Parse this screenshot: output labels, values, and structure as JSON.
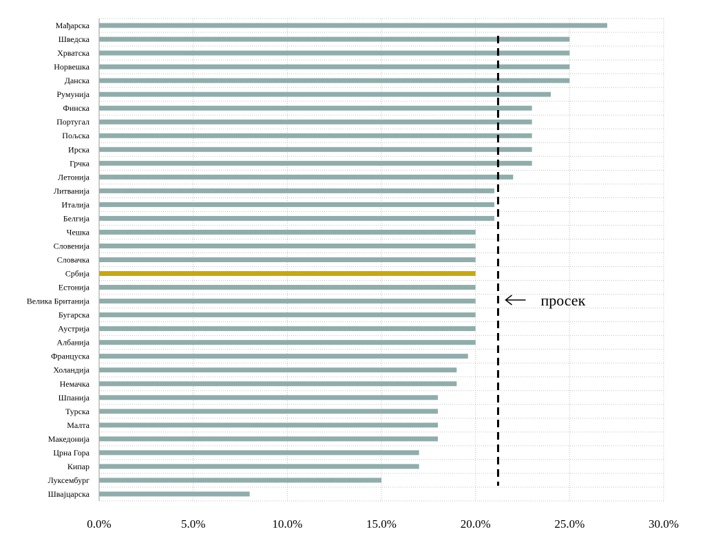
{
  "chart_data": {
    "type": "bar",
    "orientation": "horizontal",
    "categories": [
      "Мађарска",
      "Шведска",
      "Хрватска",
      "Норвешка",
      "Данска",
      "Румунија",
      "Финска",
      "Португал",
      "Пољска",
      "Ирска",
      "Грчка",
      "Летонија",
      "Литванија",
      "Италија",
      "Белгија",
      "Чешка",
      "Словенија",
      "Словачка",
      "Србија",
      "Естонија",
      "Велика Британија",
      "Бугарска",
      "Аустрија",
      "Албанија",
      "Француска",
      "Холандија",
      "Немачка",
      "Шпанија",
      "Турска",
      "Малта",
      "Македонија",
      "Црна Гора",
      "Кипар",
      "Луксембург",
      "Швајцарска"
    ],
    "values": [
      27,
      25,
      25,
      25,
      25,
      24,
      23,
      23,
      23,
      23,
      23,
      22,
      21,
      21,
      21,
      20,
      20,
      20,
      20,
      20,
      20,
      20,
      20,
      20,
      19.6,
      19,
      19,
      18,
      18,
      18,
      18,
      17,
      17,
      15,
      8
    ],
    "highlight_category": "Србија",
    "xlim": [
      0,
      30
    ],
    "xticks": [
      0,
      5,
      10,
      15,
      20,
      25,
      30
    ],
    "xtick_labels": [
      "0.0%",
      "5.0%",
      "10.0%",
      "15.0%",
      "20.0%",
      "25.0%",
      "30.0%"
    ],
    "grid": "vertical-dotted",
    "average_line": {
      "value": 21.2,
      "label": "просек"
    },
    "title": "",
    "xlabel": "",
    "ylabel": "",
    "colors": {
      "bar": "#8fadab",
      "highlight": "#c8a80a",
      "grid": "#bfbfbf",
      "average_line": "#000000"
    }
  }
}
